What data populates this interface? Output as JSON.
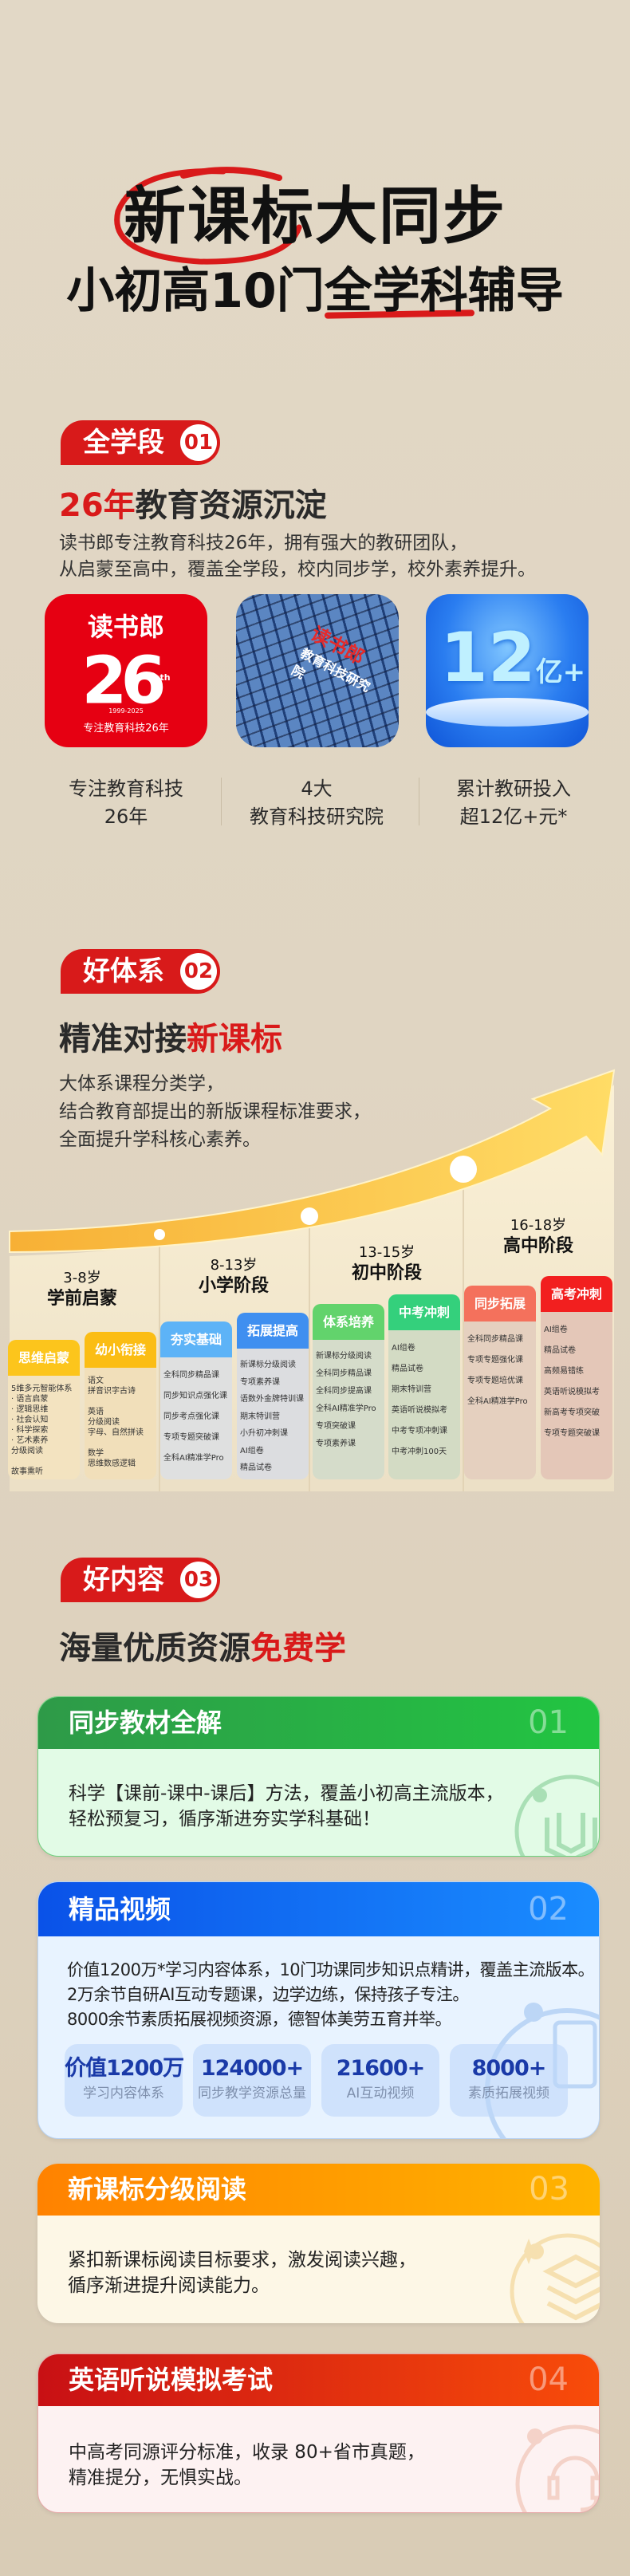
{
  "colors": {
    "brand_red": "#d81a1a",
    "background": "#e1d7c5",
    "arrow": "#f9c043"
  },
  "hero": {
    "title": "新课标大同步",
    "subtitle_pre": "小初高10门",
    "subtitle_hl": "全学科",
    "subtitle_post": "辅导"
  },
  "section1": {
    "badge": {
      "label": "全学段",
      "num": "01"
    },
    "heading_hl": "26年",
    "heading_rest": "教育资源沉淀",
    "paragraph": [
      "读书郎专注教育科技26年，拥有强大的教研团队，",
      "从启蒙至高中，覆盖全学段，校内同步学，校外素养提升。"
    ],
    "tiles": [
      {
        "brand": "读书郎",
        "big": "26",
        "sup": "th",
        "years": "1999-2025",
        "slogan": "专注教育科技26年",
        "icon": "anniversary-logo"
      },
      {
        "sign_brand": "读书郎",
        "sign_name": "教育科技研究院",
        "icon": "building-photo"
      },
      {
        "big": "12",
        "unit": "亿+",
        "icon": "crystal-dome-12yi"
      }
    ],
    "captions": [
      {
        "line1": "专注教育科技",
        "line2": "26年"
      },
      {
        "line1": "4大",
        "line2": "教育科技研究院"
      },
      {
        "line1": "累计教研投入",
        "line2": "超12亿+元*"
      }
    ]
  },
  "section2": {
    "badge": {
      "label": "好体系",
      "num": "02"
    },
    "heading_rest": "精准对接",
    "heading_hl": "新课标",
    "paragraph": [
      "大体系课程分类学，",
      "结合教育部提出的新版课程标准要求，",
      "全面提升学科核心素养。"
    ],
    "stages": [
      {
        "age": "3-8岁",
        "name": "学前启蒙",
        "tracks": [
          {
            "label": "思维启蒙",
            "color": "#fcc51c",
            "items": [
              "5维多元智能体系",
              "· 语言启蒙",
              "· 逻辑思维",
              "· 社会认知",
              "· 科学探索",
              "· 艺术素养",
              "分级阅读",
              "",
              "故事熏听"
            ]
          },
          {
            "label": "幼小衔接",
            "color": "#fbbd14",
            "items": [
              "语文",
              "拼音识字古诗",
              "",
              "英语",
              "分级阅读",
              "字母、自然拼读",
              "",
              "数学",
              "思维数感逻辑"
            ]
          }
        ]
      },
      {
        "age": "8-13岁",
        "name": "小学阶段",
        "tracks": [
          {
            "label": "夯实基础",
            "color": "#5db3f7",
            "items": [
              "全科同步精品课",
              "同步知识点强化课",
              "同步考点强化课",
              "专项专题突破课",
              "全科AI精准学Pro"
            ]
          },
          {
            "label": "拓展提高",
            "color": "#3f8ff0",
            "items": [
              "新课标分级阅读",
              "专项素养课",
              "语数外金牌特训课",
              "期末特训营",
              "小升初冲刺课",
              "AI组卷",
              "精品试卷"
            ]
          }
        ]
      },
      {
        "age": "13-15岁",
        "name": "初中阶段",
        "tracks": [
          {
            "label": "体系培养",
            "color": "#62d36c",
            "items": [
              "新课标分级阅读",
              "全科同步精品课",
              "全科同步提高课",
              "全科AI精准学Pro",
              "专项突破课",
              "专项素养课"
            ]
          },
          {
            "label": "中考冲刺",
            "color": "#34d07c",
            "items": [
              "AI组卷",
              "精品试卷",
              "期末特训营",
              "英语听说模拟考",
              "中考专项冲刺课",
              "中考冲刺100天"
            ]
          }
        ]
      },
      {
        "age": "16-18岁",
        "name": "高中阶段",
        "tracks": [
          {
            "label": "同步拓展",
            "color": "#f4715c",
            "items": [
              "全科同步精品课",
              "专项专题强化课",
              "专项专题培优课",
              "全科AI精准学Pro"
            ]
          },
          {
            "label": "高考冲刺",
            "color": "#f21f1f",
            "items": [
              "AI组卷",
              "精品试卷",
              "高频易错练",
              "英语听说模拟考",
              "新高考专项突破",
              "专项专题突破课"
            ]
          }
        ]
      }
    ]
  },
  "section3": {
    "badge": {
      "label": "好内容",
      "num": "03"
    },
    "heading_rest": "海量优质资源",
    "heading_hl": "免费学",
    "cards": [
      {
        "title": "同步教材全解",
        "num": "01",
        "lines": [
          "科学【课前-课中-课后】方法，覆盖小初高主流版本，",
          "轻松预复习，循序渐进夯实学科基础！"
        ],
        "icon": "book-icon",
        "color": "#22b845"
      },
      {
        "title": "精品视频",
        "num": "02",
        "lines": [
          "价值1200万*学习内容体系，10门功课同步知识点精讲，覆盖主流版本。",
          "2万余节自研AI互动专题课，边学边练，保持孩子专注。",
          "8000余节素质拓展视频资源，德智体美劳五育并举。"
        ],
        "icon": "video-icon",
        "color": "#1a6cf5",
        "stats": [
          {
            "value": "价值1200万",
            "label": "学习内容体系"
          },
          {
            "value": "124000+",
            "label": "同步教学资源总量"
          },
          {
            "value": "21600+",
            "label": "AI互动视频"
          },
          {
            "value": "8000+",
            "label": "素质拓展视频"
          }
        ]
      },
      {
        "title": "新课标分级阅读",
        "num": "03",
        "lines": [
          "紧扣新课标阅读目标要求，激发阅读兴趣，",
          "循序渐进提升阅读能力。"
        ],
        "icon": "layers-icon",
        "color": "#ff9a0a"
      },
      {
        "title": "英语听说模拟考试",
        "num": "04",
        "lines": [
          "中高考同源评分标准，收录 80+省市真题，",
          "精准提分，无惧实战。"
        ],
        "icon": "headset-icon",
        "color": "#e62a12"
      }
    ]
  }
}
